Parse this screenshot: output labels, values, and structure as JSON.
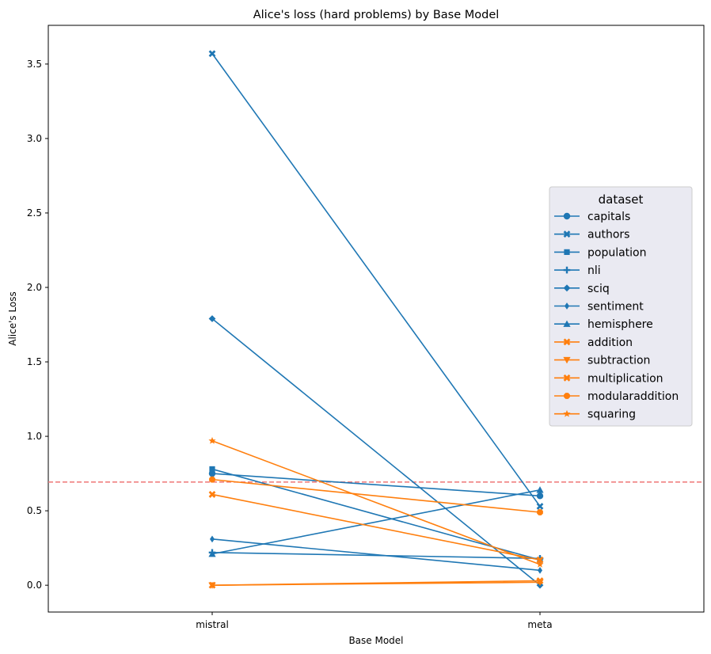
{
  "chart_data": {
    "type": "line",
    "title": "Alice's loss (hard problems) by Base Model",
    "xlabel": "Base Model",
    "ylabel": "Alice's Loss",
    "categories": [
      "mistral",
      "meta"
    ],
    "ylim": [
      -0.18,
      3.76
    ],
    "yticks": [
      "0.0",
      "0.5",
      "1.0",
      "1.5",
      "2.0",
      "2.5",
      "3.0",
      "3.5"
    ],
    "ytick_values": [
      0.0,
      0.5,
      1.0,
      1.5,
      2.0,
      2.5,
      3.0,
      3.5
    ],
    "reference_line": {
      "y": 0.693,
      "color": "#f08080",
      "style": "dashed"
    },
    "grid": false,
    "legend": {
      "title": "dataset",
      "placement": "center-right"
    },
    "colors": {
      "group_a": "#1f77b4",
      "group_b": "#ff7f0e"
    },
    "series": [
      {
        "name": "capitals",
        "values": [
          0.75,
          0.6
        ],
        "marker": "circle",
        "color": "#1f77b4"
      },
      {
        "name": "authors",
        "values": [
          3.57,
          0.53
        ],
        "marker": "x",
        "color": "#1f77b4"
      },
      {
        "name": "population",
        "values": [
          0.78,
          0.17
        ],
        "marker": "square",
        "color": "#1f77b4"
      },
      {
        "name": "nli",
        "values": [
          0.22,
          0.18
        ],
        "marker": "plus",
        "color": "#1f77b4"
      },
      {
        "name": "sciq",
        "values": [
          1.79,
          0.0
        ],
        "marker": "diamond",
        "color": "#1f77b4"
      },
      {
        "name": "sentiment",
        "values": [
          0.31,
          0.1
        ],
        "marker": "thin-diamond",
        "color": "#1f77b4"
      },
      {
        "name": "hemisphere",
        "values": [
          0.21,
          0.64
        ],
        "marker": "triangle-up",
        "color": "#1f77b4"
      },
      {
        "name": "addition",
        "values": [
          0.0,
          0.03
        ],
        "marker": "x",
        "color": "#ff7f0e"
      },
      {
        "name": "subtraction",
        "values": [
          0.0,
          0.02
        ],
        "marker": "triangle-down",
        "color": "#ff7f0e"
      },
      {
        "name": "multiplication",
        "values": [
          0.61,
          0.17
        ],
        "marker": "x",
        "color": "#ff7f0e"
      },
      {
        "name": "modularaddition",
        "values": [
          0.71,
          0.49
        ],
        "marker": "octagon",
        "color": "#ff7f0e"
      },
      {
        "name": "squaring",
        "values": [
          0.97,
          0.14
        ],
        "marker": "star",
        "color": "#ff7f0e"
      }
    ]
  }
}
